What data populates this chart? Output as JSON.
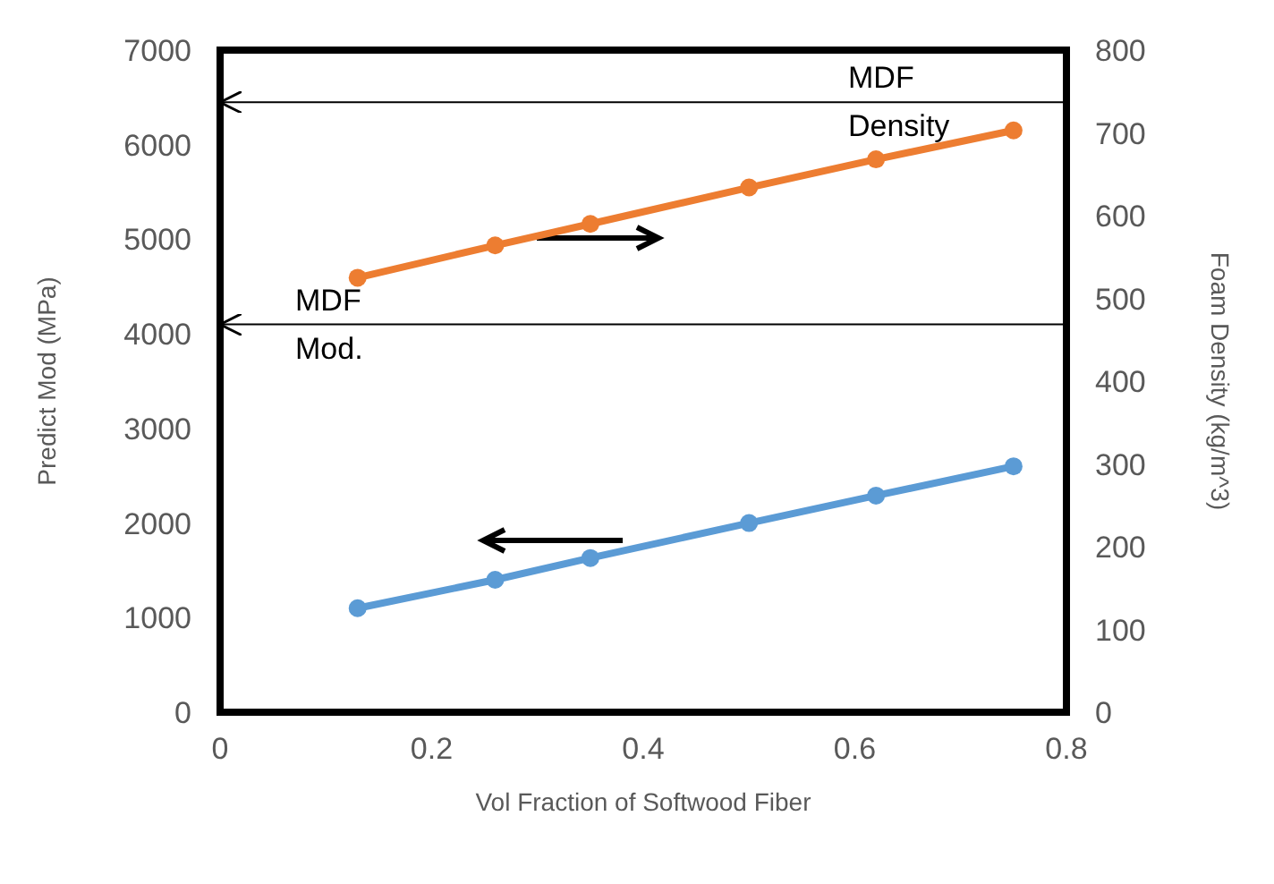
{
  "chart_data": {
    "type": "line",
    "xlabel": "Vol Fraction of Softwood Fiber",
    "ylabel": "Predict Mod (MPa)",
    "y2label": "Foam Density (kg/m^3)",
    "x": [
      0.13,
      0.26,
      0.35,
      0.5,
      0.62,
      0.75
    ],
    "series": [
      {
        "color": "#5b9bd5",
        "values": [
          1100,
          1400,
          1630,
          2000,
          2290,
          2600
        ]
      },
      {
        "color": "#ed7d31",
        "axis": "y2",
        "values": [
          525,
          564,
          590,
          634,
          668,
          703
        ]
      }
    ],
    "xlim": [
      0,
      0.8
    ],
    "xticks": [
      0,
      0.2,
      0.4,
      0.6,
      0.8
    ],
    "ylim": [
      0,
      7000
    ],
    "yticks": [
      0,
      1000,
      2000,
      3000,
      4000,
      5000,
      6000,
      7000
    ],
    "y2lim": [
      0,
      800
    ],
    "y2ticks": [
      0,
      100,
      200,
      300,
      400,
      500,
      600,
      700,
      800
    ],
    "ref_lines": [
      {
        "axis": "y2",
        "value": 737,
        "label": "MDF Density",
        "color": "#000000"
      },
      {
        "axis": "y",
        "value": 4100,
        "label": "MDF Mod.",
        "color": "#000000"
      }
    ],
    "marker": "circle",
    "line_style": "solid"
  }
}
